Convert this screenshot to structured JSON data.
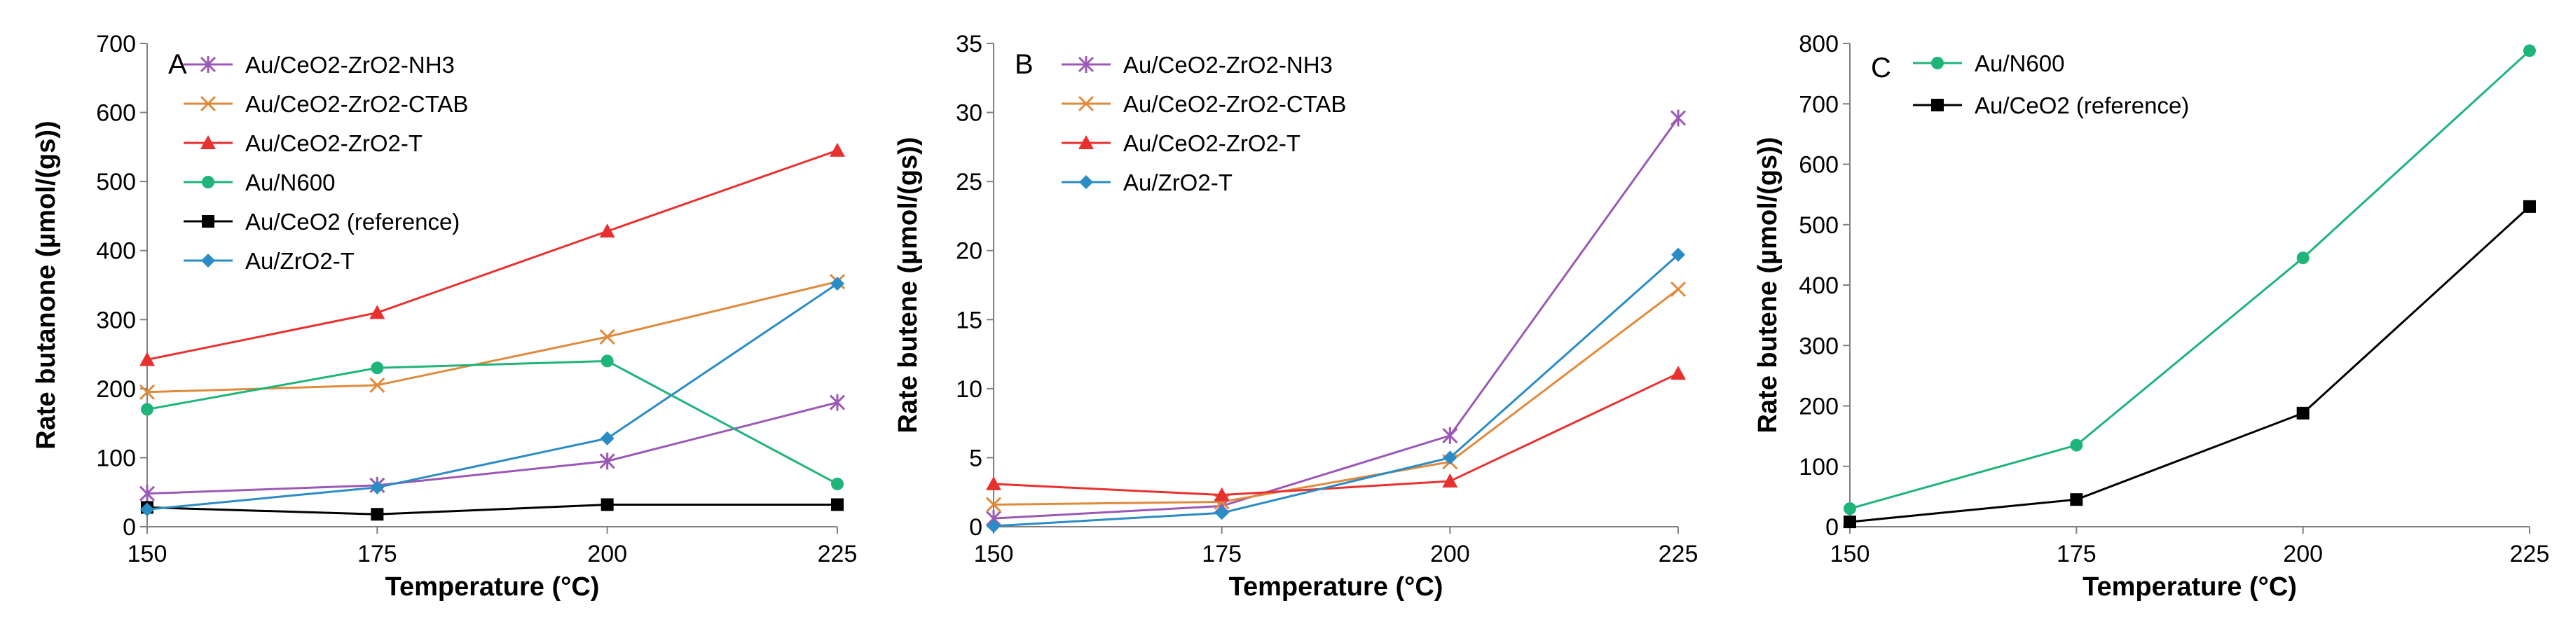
{
  "chart_data": [
    {
      "type": "line",
      "panel_letter": "A",
      "xlabel": "Temperature (°C)",
      "ylabel": "Rate butanone (µmol/(gs))",
      "x": [
        150,
        175,
        200,
        225
      ],
      "xlim": [
        150,
        225
      ],
      "xticks": [
        "150",
        "175",
        "200",
        "225"
      ],
      "ylim": [
        0,
        700
      ],
      "yticks": [
        "0",
        "100",
        "200",
        "300",
        "400",
        "500",
        "600",
        "700"
      ],
      "series": [
        {
          "name": "Au/CeO2-ZrO2-NH3",
          "color": "#9b59b6",
          "marker": "star",
          "values": [
            48,
            60,
            95,
            180
          ]
        },
        {
          "name": "Au/CeO2-ZrO2-CTAB",
          "color": "#e08a3c",
          "marker": "x",
          "values": [
            195,
            205,
            275,
            355
          ]
        },
        {
          "name": "Au/CeO2-ZrO2-T",
          "color": "#e8312f",
          "marker": "triangle",
          "values": [
            242,
            310,
            428,
            545
          ]
        },
        {
          "name": "Au/N600",
          "color": "#1fb47a",
          "marker": "circle",
          "values": [
            170,
            230,
            240,
            62
          ]
        },
        {
          "name": "Au/CeO2 (reference)",
          "color": "#000000",
          "marker": "square",
          "values": [
            28,
            18,
            32,
            32
          ]
        },
        {
          "name": "Au/ZrO2-T",
          "color": "#2a8cc4",
          "marker": "diamond",
          "values": [
            25,
            57,
            128,
            352
          ]
        }
      ]
    },
    {
      "type": "line",
      "panel_letter": "B",
      "xlabel": "Temperature (°C)",
      "ylabel": "Rate butene (µmol/(gs))",
      "x": [
        150,
        175,
        200,
        225
      ],
      "xlim": [
        150,
        225
      ],
      "xticks": [
        "150",
        "175",
        "200",
        "225"
      ],
      "ylim": [
        0,
        35
      ],
      "yticks": [
        "0",
        "5",
        "10",
        "15",
        "20",
        "25",
        "30",
        "35"
      ],
      "series": [
        {
          "name": "Au/CeO2-ZrO2-NH3",
          "color": "#9b59b6",
          "marker": "star",
          "values": [
            0.6,
            1.5,
            6.6,
            29.6
          ]
        },
        {
          "name": "Au/CeO2-ZrO2-CTAB",
          "color": "#e08a3c",
          "marker": "x",
          "values": [
            1.6,
            1.8,
            4.7,
            17.2
          ]
        },
        {
          "name": "Au/CeO2-ZrO2-T",
          "color": "#e8312f",
          "marker": "triangle",
          "values": [
            3.1,
            2.3,
            3.3,
            11.1
          ]
        },
        {
          "name": "Au/ZrO2-T",
          "color": "#2a8cc4",
          "marker": "diamond",
          "values": [
            0.05,
            1.0,
            5.0,
            19.7
          ]
        }
      ]
    },
    {
      "type": "line",
      "panel_letter": "C",
      "xlabel": "Temperature (°C)",
      "ylabel": "Rate butene (µmol/(gs))",
      "x": [
        150,
        175,
        200,
        225
      ],
      "xlim": [
        150,
        225
      ],
      "xticks": [
        "150",
        "175",
        "200",
        "225"
      ],
      "ylim": [
        0,
        800
      ],
      "yticks": [
        "0",
        "100",
        "200",
        "300",
        "400",
        "500",
        "600",
        "700",
        "800"
      ],
      "series": [
        {
          "name": "Au/N600",
          "color": "#1fb47a",
          "marker": "circle",
          "values": [
            30,
            135,
            445,
            788
          ]
        },
        {
          "name": "Au/CeO2 (reference)",
          "color": "#000000",
          "marker": "square",
          "values": [
            8,
            45,
            188,
            530
          ]
        }
      ]
    }
  ]
}
